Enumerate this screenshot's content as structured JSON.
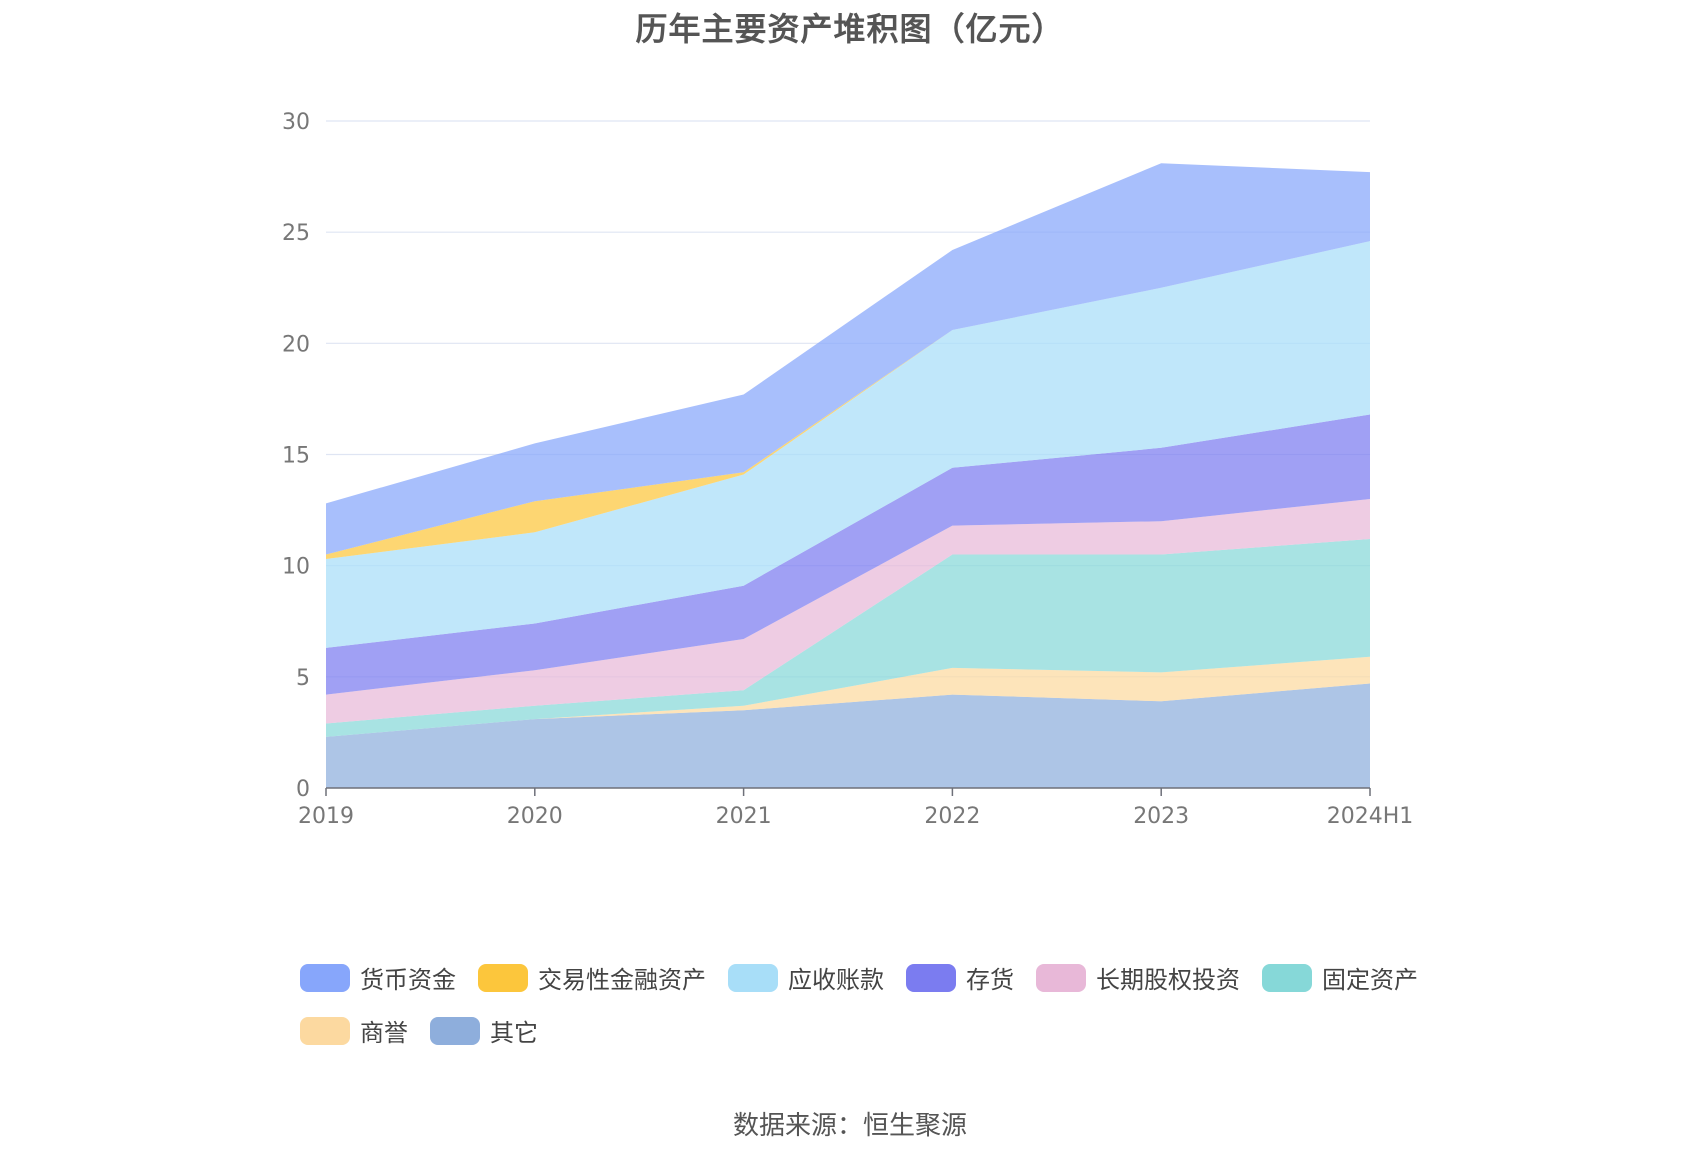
{
  "chart_data": {
    "type": "area",
    "stacked": true,
    "title": "历年主要资产堆积图（亿元）",
    "categories": [
      "2019",
      "2020",
      "2021",
      "2022",
      "2023",
      "2024H1"
    ],
    "ylim": [
      0,
      30
    ],
    "yticks": [
      "0",
      "5",
      "10",
      "15",
      "20",
      "25",
      "30"
    ],
    "grid": true,
    "legend_position": "bottom",
    "series": [
      {
        "name": "其它",
        "color": "#8eaedc",
        "values": [
          2.3,
          3.1,
          3.5,
          4.2,
          3.9,
          4.7
        ]
      },
      {
        "name": "商誉",
        "color": "#fcd9a0",
        "values": [
          0.0,
          0.0,
          0.2,
          1.2,
          1.3,
          1.2
        ]
      },
      {
        "name": "固定资产",
        "color": "#86d8d8",
        "values": [
          0.6,
          0.6,
          0.7,
          5.1,
          5.3,
          5.3
        ]
      },
      {
        "name": "长期股权投资",
        "color": "#e8b8d8",
        "values": [
          1.3,
          1.6,
          2.3,
          1.3,
          1.5,
          1.8
        ]
      },
      {
        "name": "存货",
        "color": "#7b7cf0",
        "values": [
          2.1,
          2.1,
          2.4,
          2.6,
          3.3,
          3.8
        ]
      },
      {
        "name": "应收账款",
        "color": "#a8def8",
        "values": [
          4.0,
          4.1,
          5.0,
          6.2,
          7.2,
          7.8
        ]
      },
      {
        "name": "交易性金融资产",
        "color": "#fcc63c",
        "values": [
          0.2,
          1.4,
          0.1,
          0.0,
          0.0,
          0.0
        ]
      },
      {
        "name": "货币资金",
        "color": "#87a6fb",
        "values": [
          2.3,
          2.6,
          3.5,
          3.6,
          5.6,
          3.1
        ]
      }
    ],
    "legend_order": [
      "货币资金",
      "交易性金融资产",
      "应收账款",
      "存货",
      "长期股权投资",
      "固定资产",
      "商誉",
      "其它"
    ]
  },
  "source": "数据来源：恒生聚源"
}
